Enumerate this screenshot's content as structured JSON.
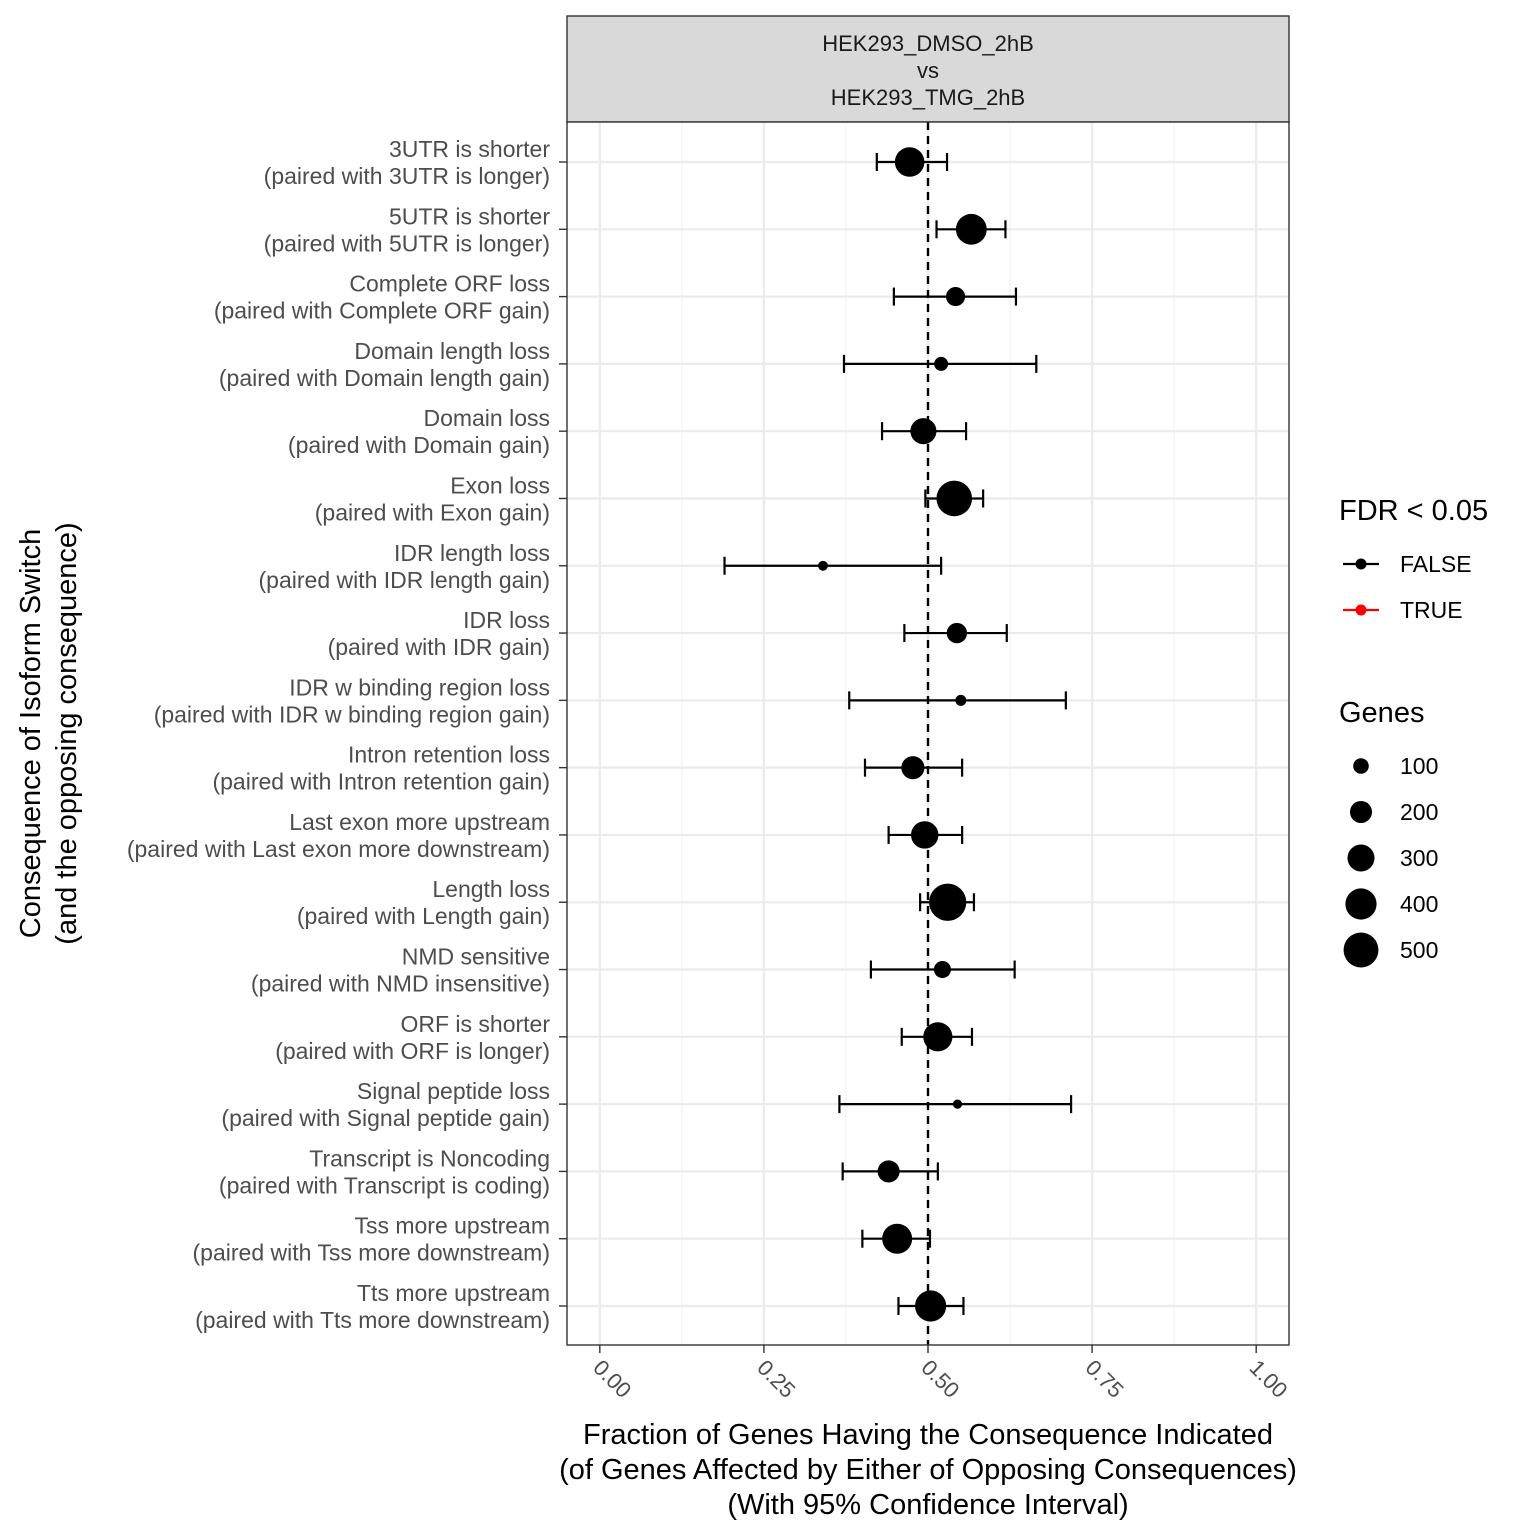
{
  "chart_data": {
    "type": "scatter",
    "facet": {
      "title_lines": [
        "HEK293_DMSO_2hB",
        "vs",
        "HEK293_TMG_2hB"
      ]
    },
    "reference_line_x": 0.5,
    "xlim": [
      -0.05,
      1.05
    ],
    "xticks": [
      0,
      0.25,
      0.5,
      0.75,
      1.0
    ],
    "xtick_labels": [
      "0.00",
      "0.25",
      "0.50",
      "0.75",
      "1.00"
    ],
    "xlabel_lines": [
      "Fraction of Genes Having the Consequence Indicated",
      "(of Genes Affected by Either of Opposing Consequences)",
      "(With 95% Confidence Interval)"
    ],
    "ylabel_lines": [
      "Consequence of Isoform Switch",
      "(and the opposing consequence)"
    ],
    "categories": [
      {
        "label": "3UTR is shorter",
        "sublabel": "(paired with 3UTR is longer)",
        "x": 0.472,
        "lo": 0.422,
        "hi": 0.529,
        "genes": 360,
        "fdr_sig": false
      },
      {
        "label": "5UTR is shorter",
        "sublabel": "(paired with 5UTR is longer)",
        "x": 0.566,
        "lo": 0.513,
        "hi": 0.618,
        "genes": 390,
        "fdr_sig": false
      },
      {
        "label": "Complete ORF loss",
        "sublabel": "(paired with Complete ORF gain)",
        "x": 0.542,
        "lo": 0.448,
        "hi": 0.634,
        "genes": 150,
        "fdr_sig": false
      },
      {
        "label": "Domain length loss",
        "sublabel": "(paired with Domain length gain)",
        "x": 0.52,
        "lo": 0.372,
        "hi": 0.665,
        "genes": 80,
        "fdr_sig": false
      },
      {
        "label": "Domain loss",
        "sublabel": "(paired with Domain gain)",
        "x": 0.493,
        "lo": 0.43,
        "hi": 0.558,
        "genes": 280,
        "fdr_sig": false
      },
      {
        "label": "Exon loss",
        "sublabel": "(paired with Exon gain)",
        "x": 0.54,
        "lo": 0.496,
        "hi": 0.584,
        "genes": 520,
        "fdr_sig": false
      },
      {
        "label": "IDR length loss",
        "sublabel": "(paired with IDR length gain)",
        "x": 0.34,
        "lo": 0.19,
        "hi": 0.52,
        "genes": 40,
        "fdr_sig": false
      },
      {
        "label": "IDR loss",
        "sublabel": "(paired with IDR gain)",
        "x": 0.544,
        "lo": 0.464,
        "hi": 0.62,
        "genes": 170,
        "fdr_sig": false
      },
      {
        "label": "IDR w binding region loss",
        "sublabel": "(paired with IDR w binding region gain)",
        "x": 0.55,
        "lo": 0.38,
        "hi": 0.71,
        "genes": 50,
        "fdr_sig": false
      },
      {
        "label": "Intron retention loss",
        "sublabel": "(paired with Intron retention gain)",
        "x": 0.477,
        "lo": 0.404,
        "hi": 0.552,
        "genes": 220,
        "fdr_sig": false
      },
      {
        "label": "Last exon more upstream",
        "sublabel": "(paired with Last exon more downstream)",
        "x": 0.495,
        "lo": 0.44,
        "hi": 0.552,
        "genes": 310,
        "fdr_sig": false
      },
      {
        "label": "Length loss",
        "sublabel": "(paired with Length gain)",
        "x": 0.53,
        "lo": 0.488,
        "hi": 0.57,
        "genes": 570,
        "fdr_sig": false
      },
      {
        "label": "NMD sensitive",
        "sublabel": "(paired with NMD insensitive)",
        "x": 0.522,
        "lo": 0.413,
        "hi": 0.632,
        "genes": 120,
        "fdr_sig": false
      },
      {
        "label": "ORF is shorter",
        "sublabel": "(paired with ORF is longer)",
        "x": 0.515,
        "lo": 0.46,
        "hi": 0.567,
        "genes": 350,
        "fdr_sig": false
      },
      {
        "label": "Signal peptide loss",
        "sublabel": "(paired with Signal peptide gain)",
        "x": 0.545,
        "lo": 0.365,
        "hi": 0.718,
        "genes": 35,
        "fdr_sig": false
      },
      {
        "label": "Transcript is Noncoding",
        "sublabel": "(paired with Transcript is coding)",
        "x": 0.44,
        "lo": 0.37,
        "hi": 0.515,
        "genes": 200,
        "fdr_sig": false
      },
      {
        "label": "Tss more upstream",
        "sublabel": "(paired with Tss more downstream)",
        "x": 0.453,
        "lo": 0.4,
        "hi": 0.503,
        "genes": 370,
        "fdr_sig": false
      },
      {
        "label": "Tts more upstream",
        "sublabel": "(paired with Tts more downstream)",
        "x": 0.504,
        "lo": 0.455,
        "hi": 0.554,
        "genes": 400,
        "fdr_sig": false
      }
    ],
    "legend_fdr": {
      "title": "FDR < 0.05",
      "items": [
        {
          "label": "FALSE",
          "color": "#000000"
        },
        {
          "label": "TRUE",
          "color": "#ff0000"
        }
      ]
    },
    "legend_genes": {
      "title": "Genes",
      "items": [
        {
          "label": "100",
          "value": 100
        },
        {
          "label": "200",
          "value": 200
        },
        {
          "label": "300",
          "value": 300
        },
        {
          "label": "400",
          "value": 400
        },
        {
          "label": "500",
          "value": 500
        }
      ]
    },
    "grid": true,
    "legend_position": "right"
  }
}
